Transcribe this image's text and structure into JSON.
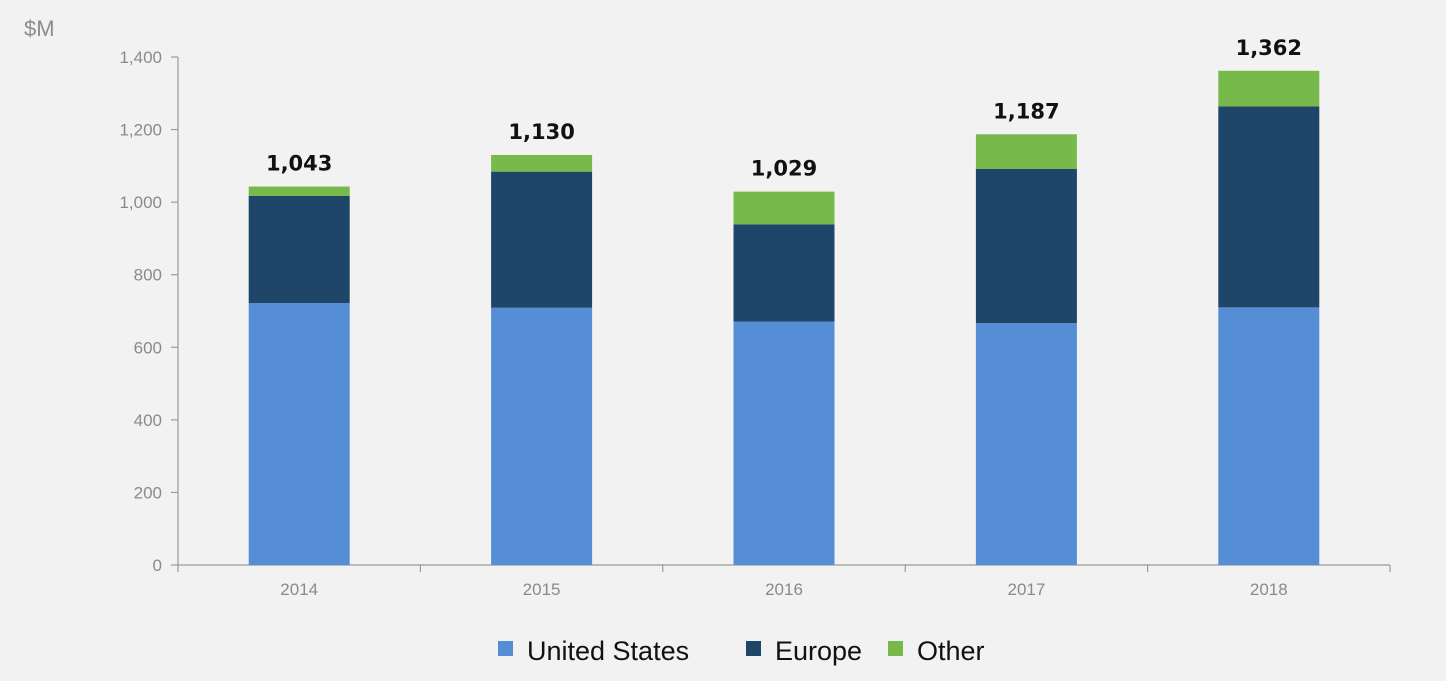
{
  "chart_data": {
    "type": "bar",
    "stacked": true,
    "unit_label": "$M",
    "title": "",
    "xlabel": "",
    "ylabel": "",
    "categories": [
      "2014",
      "2015",
      "2016",
      "2017",
      "2018"
    ],
    "series": [
      {
        "name": "United States",
        "color": "#558ed5",
        "values": [
          722,
          709,
          671,
          667,
          710
        ]
      },
      {
        "name": "Europe",
        "color": "#1f4569",
        "values": [
          295,
          375,
          268,
          425,
          554
        ]
      },
      {
        "name": "Other",
        "color": "#77b94b",
        "values": [
          26,
          46,
          90,
          95,
          98
        ]
      }
    ],
    "totals": [
      "1,043",
      "1,130",
      "1,029",
      "1,187",
      "1,362"
    ],
    "ylim": [
      0,
      1400
    ],
    "yticks": [
      0,
      200,
      400,
      600,
      800,
      1000,
      1200,
      1400
    ],
    "ytick_labels": [
      "0",
      "200",
      "400",
      "600",
      "800",
      "1,000",
      "1,200",
      "1,400"
    ],
    "grid": false,
    "legend_position": "bottom-center"
  }
}
